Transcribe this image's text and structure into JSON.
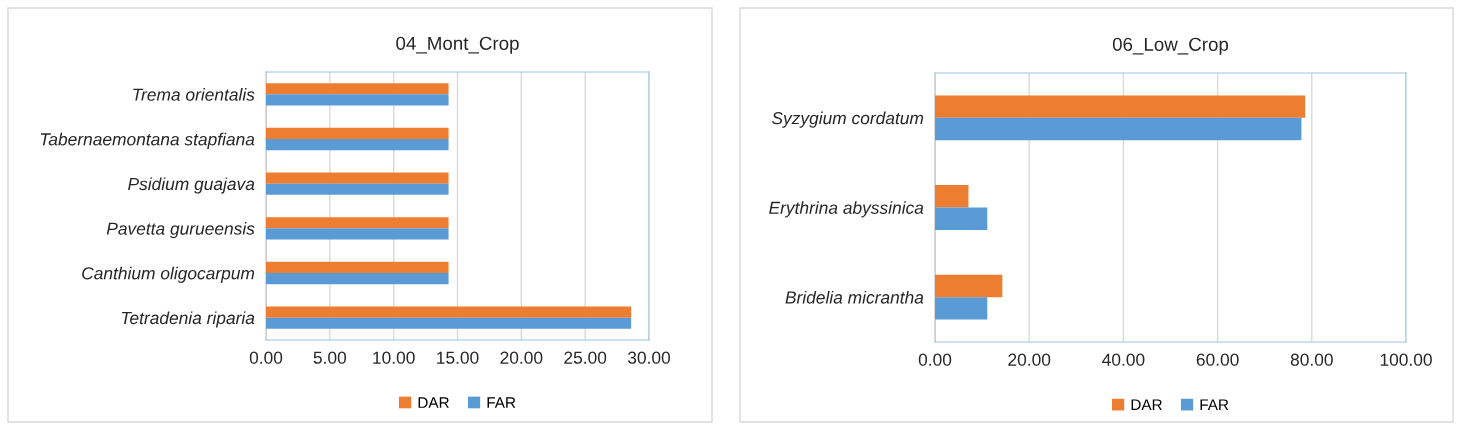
{
  "chart_data": [
    {
      "type": "bar",
      "orientation": "horizontal",
      "title": "04_Mont_Crop",
      "categories": [
        "Trema orientalis",
        "Tabernaemontana stapfiana",
        "Psidium guajava",
        "Pavetta gurueensis",
        "Canthium oligocarpum",
        "Tetradenia riparia"
      ],
      "series": [
        {
          "name": "DAR",
          "color": "#ed7d31",
          "values": [
            14.3,
            14.3,
            14.3,
            14.3,
            14.3,
            28.6
          ]
        },
        {
          "name": "FAR",
          "color": "#5b9bd5",
          "values": [
            14.3,
            14.3,
            14.3,
            14.3,
            14.3,
            28.6
          ]
        }
      ],
      "xlim": [
        0,
        30
      ],
      "xticks": [
        {
          "value": 0,
          "label": "0.00"
        },
        {
          "value": 5,
          "label": "5.00"
        },
        {
          "value": 10,
          "label": "10.00"
        },
        {
          "value": 15,
          "label": "15.00"
        },
        {
          "value": 20,
          "label": "20.00"
        },
        {
          "value": 25,
          "label": "25.00"
        },
        {
          "value": 30,
          "label": "30.00"
        }
      ],
      "grid": "x",
      "legend": "bottom"
    },
    {
      "type": "bar",
      "orientation": "horizontal",
      "title": "06_Low_Crop",
      "categories": [
        "Syzygium cordatum",
        "Erythrina abyssinica",
        "Bridelia micrantha"
      ],
      "series": [
        {
          "name": "DAR",
          "color": "#ed7d31",
          "values": [
            78.6,
            7.1,
            14.3
          ]
        },
        {
          "name": "FAR",
          "color": "#5b9bd5",
          "values": [
            77.8,
            11.1,
            11.1
          ]
        }
      ],
      "xlim": [
        0,
        100
      ],
      "xticks": [
        {
          "value": 0,
          "label": "0.00"
        },
        {
          "value": 20,
          "label": "20.00"
        },
        {
          "value": 40,
          "label": "40.00"
        },
        {
          "value": 60,
          "label": "60.00"
        },
        {
          "value": 80,
          "label": "80.00"
        },
        {
          "value": 100,
          "label": "100.00"
        }
      ],
      "grid": "x",
      "legend": "bottom"
    }
  ]
}
